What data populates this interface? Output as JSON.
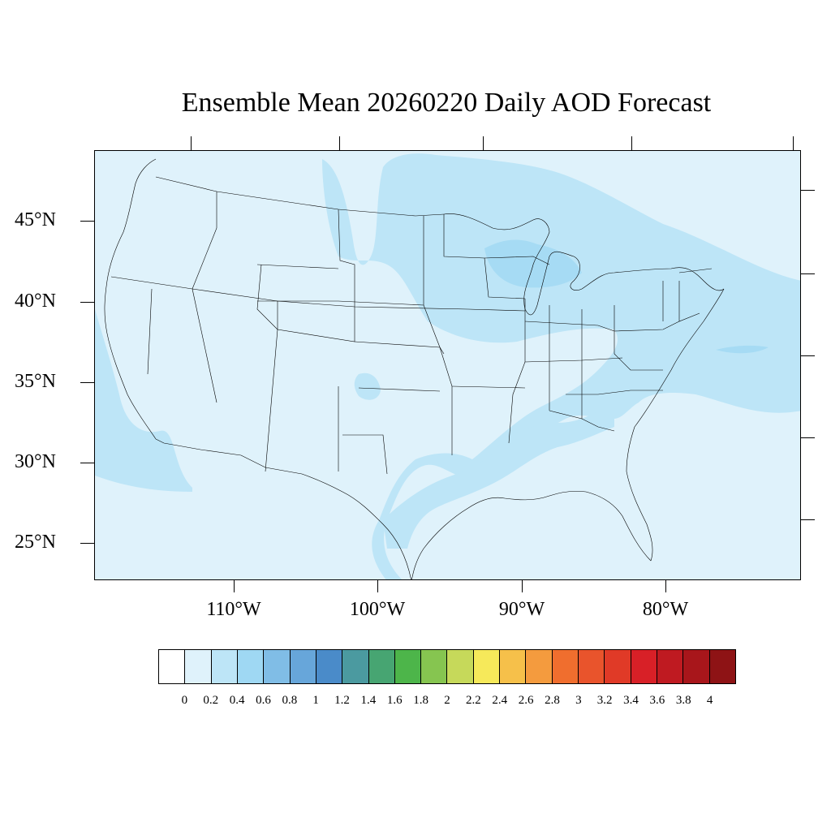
{
  "title": "Ensemble Mean 20260220 Daily AOD Forecast",
  "latitude_labels": [
    "45°N",
    "40°N",
    "35°N",
    "30°N",
    "25°N"
  ],
  "longitude_labels": [
    "110°W",
    "100°W",
    "90°W",
    "80°W"
  ],
  "colorbar": {
    "labels": [
      "0",
      "0.2",
      "0.4",
      "0.6",
      "0.8",
      "1",
      "1.2",
      "1.4",
      "1.6",
      "1.8",
      "2",
      "2.2",
      "2.4",
      "2.6",
      "2.8",
      "3",
      "3.2",
      "3.4",
      "3.6",
      "3.8",
      "4"
    ],
    "colors": [
      "#ffffff",
      "#dff2fb",
      "#bde5f7",
      "#9fd8f3",
      "#80bde6",
      "#67a6da",
      "#4a8bc9",
      "#4b9aa0",
      "#47a572",
      "#4db54a",
      "#86c550",
      "#c6d95a",
      "#f6e95a",
      "#f6c04a",
      "#f49b3e",
      "#f06e2e",
      "#e9542c",
      "#e03a27",
      "#d82027",
      "#bf1a21",
      "#a8161b",
      "#8e1315"
    ]
  },
  "map": {
    "background_color": "#dff2fb",
    "plume_color": "#bde5f7",
    "plume_color_dark": "#a6dbf4",
    "boundary_color": "#000000"
  }
}
